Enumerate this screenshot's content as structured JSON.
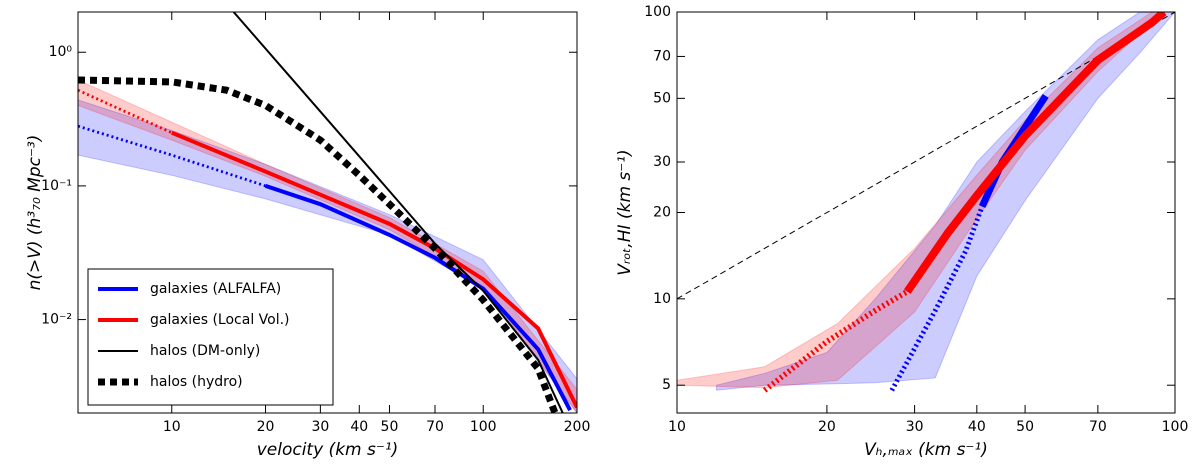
{
  "chart_data": [
    {
      "type": "line",
      "xscale": "log",
      "yscale": "log",
      "xlabel": "velocity   (km s⁻¹)",
      "ylabel": "n(>V)    (h³₇₀ Mpc⁻³)",
      "xlim": [
        5,
        200
      ],
      "ylim": [
        0.002,
        2
      ],
      "xticks": [
        10,
        20,
        30,
        40,
        50,
        70,
        100,
        200
      ],
      "yticks": [
        {
          "value": 0.01,
          "label": "10⁻²"
        },
        {
          "value": 0.1,
          "label": "10⁻¹"
        },
        {
          "value": 1,
          "label": "10⁰"
        }
      ],
      "legend": "lower left",
      "bands": [
        {
          "color": "#0000ff",
          "alpha": 0.2,
          "x": [
            5,
            10,
            20,
            50,
            100,
            200
          ],
          "lower": [
            0.17,
            0.12,
            0.08,
            0.043,
            0.017,
            0.002
          ],
          "upper": [
            0.44,
            0.26,
            0.145,
            0.061,
            0.028,
            0.0036
          ]
        },
        {
          "color": "#ff0000",
          "alpha": 0.2,
          "x": [
            5,
            10,
            20,
            50,
            100,
            200
          ],
          "lower": [
            0.4,
            0.22,
            0.118,
            0.047,
            0.018,
            0.002
          ],
          "upper": [
            0.62,
            0.3,
            0.145,
            0.058,
            0.023,
            0.003
          ]
        }
      ],
      "series": [
        {
          "name": "galaxies (ALFALFA)",
          "color": "#0000ff",
          "linewidth": 4,
          "dotted_below": 20,
          "x": [
            5,
            10,
            20,
            30,
            50,
            70,
            100,
            150,
            190
          ],
          "values": [
            0.28,
            0.17,
            0.1,
            0.073,
            0.043,
            0.029,
            0.017,
            0.006,
            0.0021
          ]
        },
        {
          "name": "galaxies (Local Vol.)",
          "color": "#ff0000",
          "linewidth": 4,
          "dotted_below": 10,
          "x": [
            5,
            10,
            20,
            30,
            50,
            70,
            100,
            150,
            200
          ],
          "values": [
            0.52,
            0.25,
            0.128,
            0.086,
            0.052,
            0.034,
            0.02,
            0.0086,
            0.0022
          ]
        },
        {
          "name": "halos (DM-only)",
          "color": "#000000",
          "linewidth": 2,
          "x": [
            15.8,
            30,
            70,
            100,
            150,
            180
          ],
          "values": [
            2,
            0.36,
            0.037,
            0.0164,
            0.005,
            0.002
          ]
        },
        {
          "name": "halos (hydro)",
          "color": "#000000",
          "linewidth": 7,
          "linestyle": "squares",
          "x": [
            5,
            10,
            15,
            20,
            30,
            40,
            50,
            70,
            100,
            150,
            170
          ],
          "values": [
            0.62,
            0.6,
            0.52,
            0.4,
            0.22,
            0.12,
            0.073,
            0.034,
            0.014,
            0.0043,
            0.002
          ]
        }
      ]
    },
    {
      "type": "line",
      "xscale": "log",
      "yscale": "log",
      "xlabel": "Vₕ,ₘₐₓ   (km s⁻¹)",
      "ylabel": "Vᵣₒₜ,HI   (km s⁻¹)",
      "xlim": [
        10,
        100
      ],
      "ylim": [
        4,
        100
      ],
      "xticks": [
        10,
        20,
        30,
        40,
        50,
        70,
        100
      ],
      "yticks": [
        5,
        10,
        20,
        30,
        50,
        70,
        100
      ],
      "bands": [
        {
          "color": "#0000ff",
          "alpha": 0.2,
          "x": [
            12,
            15,
            20,
            25,
            33,
            40,
            50,
            70,
            85,
            100
          ],
          "lower": [
            4.8,
            5,
            5.05,
            5.1,
            5.3,
            12,
            22,
            50,
            72,
            100
          ],
          "upper": [
            5,
            5.5,
            6.5,
            10,
            18,
            30,
            45,
            80,
            100,
            100
          ]
        },
        {
          "color": "#ff0000",
          "alpha": 0.2,
          "x": [
            10,
            15,
            21,
            30,
            40,
            50,
            70,
            90,
            95
          ],
          "lower": [
            5,
            4.9,
            5.2,
            9,
            19,
            33,
            62,
            92,
            100
          ],
          "upper": [
            5.2,
            5.8,
            8.2,
            15,
            27,
            42,
            75,
            100,
            100
          ]
        }
      ],
      "series": [
        {
          "color": "#000000",
          "linewidth": 1,
          "linestyle": "dashed",
          "x": [
            10,
            100
          ],
          "values": [
            10,
            100
          ]
        },
        {
          "color": "#0000ff",
          "linewidth": 7,
          "dotted_below": 41,
          "x": [
            27,
            33,
            38,
            41,
            45,
            55
          ],
          "values": [
            4.8,
            9.1,
            14.7,
            21,
            30,
            51
          ]
        },
        {
          "color": "#ff0000",
          "linewidth": 8,
          "dotted_below": 29,
          "x": [
            15,
            20,
            25,
            29,
            35,
            40,
            50,
            70,
            90,
            95
          ],
          "values": [
            4.8,
            7.1,
            9.1,
            10.6,
            17,
            22.9,
            37,
            68,
            92,
            100
          ]
        }
      ]
    }
  ]
}
